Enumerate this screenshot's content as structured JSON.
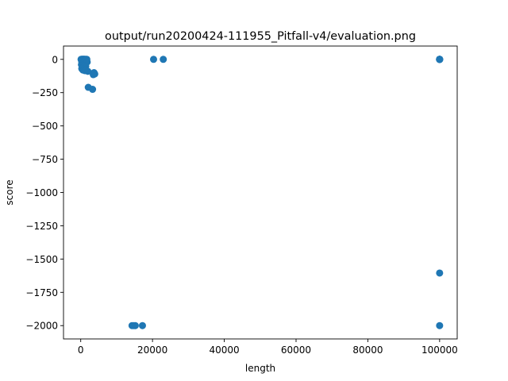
{
  "chart_data": {
    "type": "scatter",
    "title": "output/run20200424-111955_Pitfall-v4/evaluation.png",
    "xlabel": "length",
    "ylabel": "score",
    "xlim": [
      -4800,
      104900
    ],
    "ylim": [
      -2100,
      100
    ],
    "xticks": [
      0,
      20000,
      40000,
      60000,
      80000,
      100000
    ],
    "xtick_labels": [
      "0",
      "20000",
      "40000",
      "60000",
      "80000",
      "100000"
    ],
    "yticks": [
      0,
      -250,
      -500,
      -750,
      -1000,
      -1250,
      -1500,
      -1750,
      -2000
    ],
    "ytick_labels": [
      "0",
      "−250",
      "−500",
      "−750",
      "−1000",
      "−1250",
      "−1500",
      "−1750",
      "−2000"
    ],
    "grid": false,
    "legend": "none",
    "marker_color": "#1f77b4",
    "series": [
      {
        "x": [
          100,
          250,
          400,
          500,
          600,
          700,
          800,
          900,
          1000,
          1100,
          1300,
          1500,
          1700,
          200,
          300,
          450,
          550,
          650,
          750,
          850,
          950,
          1050,
          1200,
          1400,
          1600,
          300,
          500,
          700,
          900,
          1100,
          1300,
          1500,
          1800,
          200,
          400,
          600,
          800,
          1000,
          1200,
          1400,
          300,
          600,
          900,
          1200,
          1500,
          2000,
          2100,
          3300,
          3500,
          3700,
          3900,
          20300,
          23000,
          100000,
          100000,
          100000,
          100000,
          100000,
          100000,
          100000,
          100000,
          100000,
          100000,
          100000,
          100000,
          14300,
          14800,
          15200,
          17200
        ],
        "y": [
          0,
          0,
          0,
          0,
          0,
          0,
          0,
          0,
          0,
          0,
          0,
          0,
          0,
          -5,
          -8,
          -6,
          -10,
          -12,
          -7,
          -9,
          -11,
          -5,
          -8,
          -10,
          -6,
          -20,
          -25,
          -30,
          -22,
          -18,
          -28,
          -24,
          -20,
          -40,
          -50,
          -45,
          -55,
          -60,
          -48,
          -52,
          -70,
          -80,
          -75,
          -85,
          -82,
          -90,
          -210,
          -225,
          -115,
          -100,
          -110,
          0,
          0,
          0,
          0,
          0,
          0,
          0,
          0,
          0,
          0,
          0,
          0,
          -1605,
          -2000,
          -2000,
          -2000,
          -2000,
          -2000
        ]
      }
    ]
  }
}
